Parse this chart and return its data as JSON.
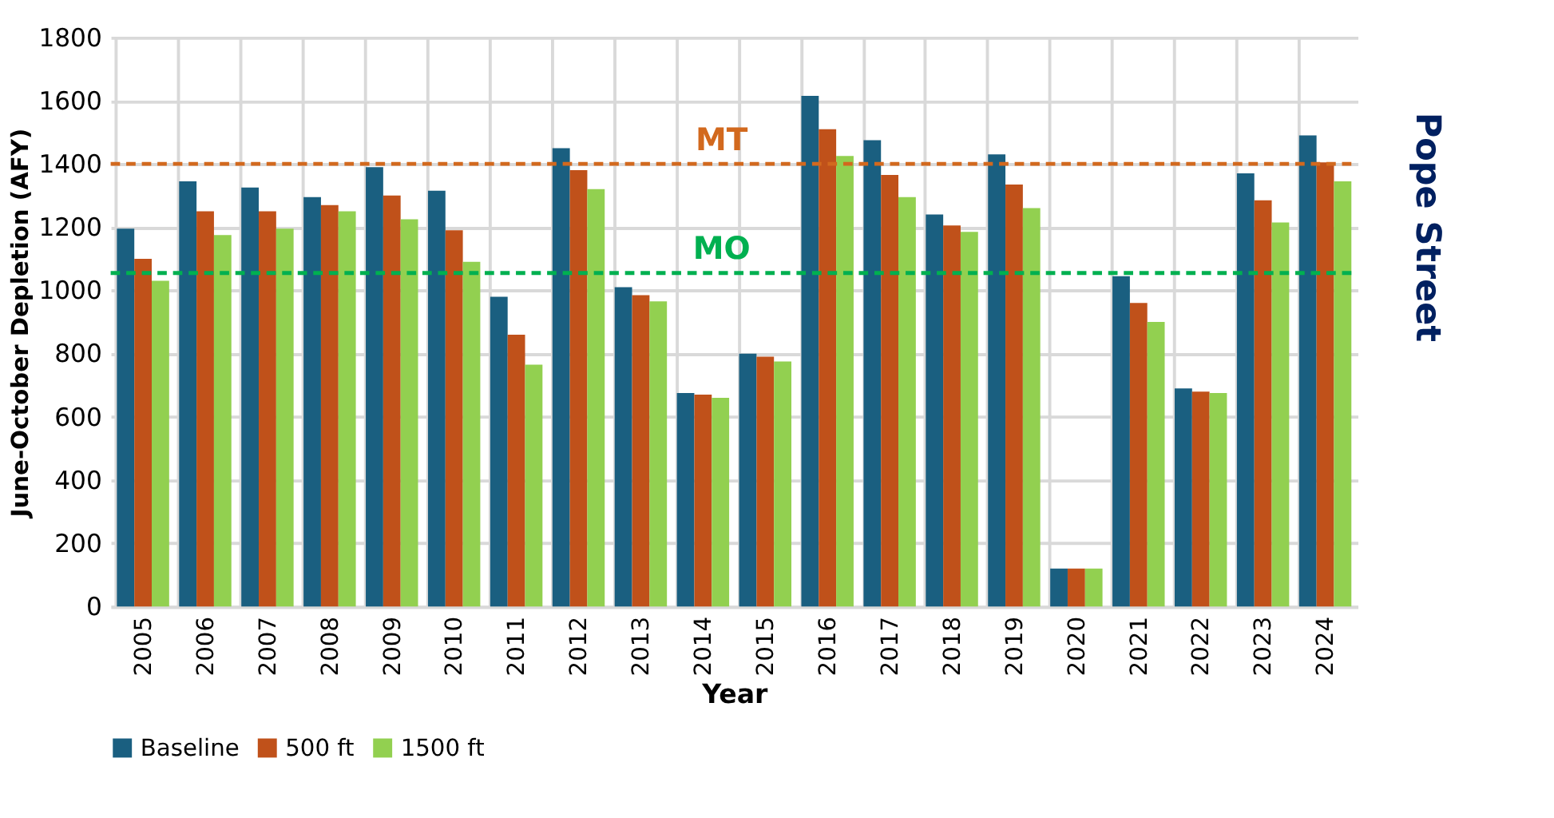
{
  "chart_data": {
    "type": "bar",
    "xlabel": "Year",
    "ylabel": "June-October Depletion (AFY)",
    "categories": [
      "2005",
      "2006",
      "2007",
      "2008",
      "2009",
      "2010",
      "2011",
      "2012",
      "2013",
      "2014",
      "2015",
      "2016",
      "2017",
      "2018",
      "2019",
      "2020",
      "2021",
      "2022",
      "2023",
      "2024"
    ],
    "series": [
      {
        "name": "Baseline",
        "color": "#1a5f80",
        "values": [
          1195,
          1345,
          1325,
          1295,
          1390,
          1315,
          980,
          1450,
          1010,
          675,
          800,
          1615,
          1475,
          1240,
          1430,
          120,
          1045,
          690,
          1370,
          1490
        ]
      },
      {
        "name": "500 ft",
        "color": "#c0511a",
        "values": [
          1100,
          1250,
          1250,
          1270,
          1300,
          1190,
          860,
          1380,
          985,
          670,
          790,
          1510,
          1365,
          1205,
          1335,
          120,
          960,
          680,
          1285,
          1405
        ]
      },
      {
        "name": "1500 ft",
        "color": "#92d050",
        "values": [
          1030,
          1175,
          1195,
          1250,
          1225,
          1090,
          765,
          1320,
          965,
          660,
          775,
          1425,
          1295,
          1185,
          1260,
          120,
          900,
          675,
          1215,
          1345
        ]
      }
    ],
    "ylim": [
      0,
      1800
    ],
    "yticks": [
      0,
      200,
      400,
      600,
      800,
      1000,
      1200,
      1400,
      1600,
      1800
    ],
    "ref_lines": [
      {
        "axis": "y",
        "value": 1400,
        "label": "MT",
        "color": "#d2691e",
        "line_style": "dashed"
      },
      {
        "axis": "y",
        "value": 1055,
        "label": "MO",
        "color": "#00b050",
        "line_style": "dashed"
      }
    ],
    "annotations": [
      "Pope Street"
    ],
    "grid": true,
    "legend": "bottom"
  }
}
